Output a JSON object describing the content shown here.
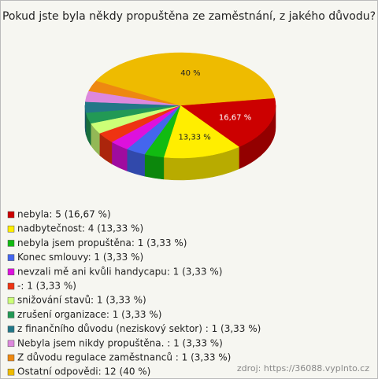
{
  "chart_data": {
    "type": "pie3d",
    "title": "Pokud jste byla někdy propuštěna ze zaměstnání, z jakého důvodu?",
    "values": [
      16.67,
      13.33,
      3.33,
      3.33,
      3.33,
      3.33,
      3.33,
      3.33,
      3.33,
      3.33,
      3.33,
      40
    ],
    "value_labels": [
      "16,67 %",
      "13,33 %",
      null,
      null,
      null,
      null,
      null,
      null,
      null,
      null,
      null,
      "40 %"
    ],
    "colors": [
      "#cc0000",
      "#ffee00",
      "#11bb11",
      "#4466ee",
      "#dd11dd",
      "#ee3311",
      "#ccff77",
      "#229955",
      "#227788",
      "#dd88dd",
      "#ee8811",
      "#eebb00"
    ],
    "legend_labels": [
      "nebyla: 5 (16,67 %)",
      "nadbytečnost: 4 (13,33 %)",
      "nebyla jsem propuštěna: 1 (3,33 %)",
      "Konec smlouvy: 1 (3,33 %)",
      "nevzali mě ani kvůli handycapu: 1 (3,33 %)",
      "-: 1 (3,33 %)",
      "snižování stavů: 1 (3,33 %)",
      "zrušení organizace: 1 (3,33 %)",
      "z finančního důvodu (neziskový sektor) : 1 (3,33 %)",
      "Nebyla jsem nikdy propuštěna. : 1 (3,33 %)",
      "Z důvodu regulace zaměstnanců : 1 (3,33 %)",
      "Ostatní odpovědi: 12 (40 %)"
    ],
    "source": "zdroj: https://36088.vyplnto.cz"
  }
}
